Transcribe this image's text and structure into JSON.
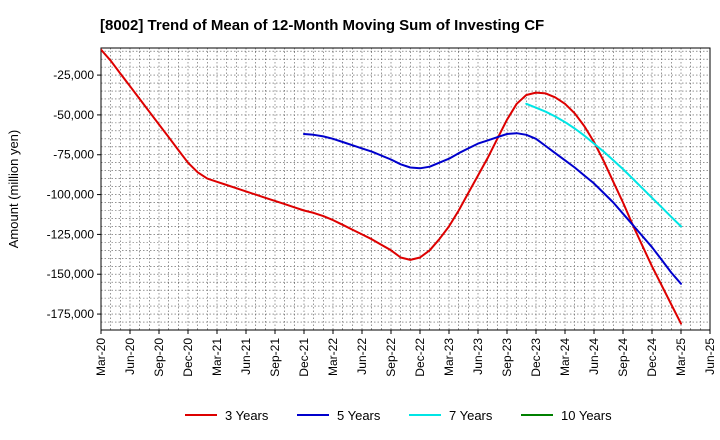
{
  "chart_data": {
    "type": "line",
    "title": "[8002]  Trend of Mean of 12-Month Moving Sum of Investing CF",
    "xlabel": "",
    "ylabel": "Amount (million yen)",
    "x_ticks": [
      "Mar-20",
      "Jun-20",
      "Sep-20",
      "Dec-20",
      "Mar-21",
      "Jun-21",
      "Sep-21",
      "Dec-21",
      "Mar-22",
      "Jun-22",
      "Sep-22",
      "Dec-22",
      "Mar-23",
      "Jun-23",
      "Sep-23",
      "Dec-23",
      "Mar-24",
      "Jun-24",
      "Sep-24",
      "Dec-24",
      "Mar-25",
      "Jun-25"
    ],
    "y_ticks": [
      -25000,
      -50000,
      -75000,
      -100000,
      -125000,
      -150000,
      -175000
    ],
    "y_tick_labels": [
      "-25,000",
      "-50,000",
      "-75,000",
      "-100,000",
      "-125,000",
      "-150,000",
      "-175,000"
    ],
    "ylim": [
      -185000,
      -8000
    ],
    "grid": true,
    "legend_position": "bottom",
    "series": [
      {
        "name": "3 Years",
        "color": "#dd0000",
        "x": [
          "Mar-20",
          "Apr-20",
          "May-20",
          "Jun-20",
          "Jul-20",
          "Aug-20",
          "Sep-20",
          "Oct-20",
          "Nov-20",
          "Dec-20",
          "Jan-21",
          "Feb-21",
          "Mar-21",
          "Apr-21",
          "May-21",
          "Jun-21",
          "Jul-21",
          "Aug-21",
          "Sep-21",
          "Oct-21",
          "Nov-21",
          "Dec-21",
          "Jan-22",
          "Feb-22",
          "Mar-22",
          "Apr-22",
          "May-22",
          "Jun-22",
          "Jul-22",
          "Aug-22",
          "Sep-22",
          "Oct-22",
          "Nov-22",
          "Dec-22",
          "Jan-23",
          "Feb-23",
          "Mar-23",
          "Apr-23",
          "May-23",
          "Jun-23",
          "Jul-23",
          "Aug-23",
          "Sep-23",
          "Oct-23",
          "Nov-23",
          "Dec-23",
          "Jan-24",
          "Feb-24",
          "Mar-24",
          "Apr-24",
          "May-24",
          "Jun-24",
          "Jul-24",
          "Aug-24",
          "Sep-24",
          "Oct-24",
          "Nov-24",
          "Dec-24",
          "Jan-25",
          "Feb-25",
          "Mar-25"
        ],
        "values": [
          -9000,
          -16000,
          -24000,
          -32000,
          -40000,
          -48000,
          -56000,
          -64000,
          -72000,
          -80000,
          -86000,
          -90000,
          -92000,
          -94000,
          -96000,
          -98000,
          -100000,
          -102000,
          -104000,
          -106000,
          -108000,
          -110000,
          -111500,
          -113500,
          -116000,
          -119000,
          -122000,
          -125000,
          -128000,
          -131500,
          -135000,
          -139500,
          -141000,
          -139500,
          -135000,
          -128000,
          -120000,
          -110000,
          -99000,
          -88000,
          -77000,
          -65000,
          -53000,
          -43000,
          -37500,
          -36000,
          -36500,
          -39000,
          -43000,
          -49000,
          -57000,
          -67000,
          -79000,
          -92000,
          -105000,
          -119000,
          -132000,
          -145000,
          -157000,
          -169000,
          -181000
        ]
      },
      {
        "name": "5 Years",
        "color": "#0000cc",
        "x": [
          "Dec-21",
          "Jan-22",
          "Feb-22",
          "Mar-22",
          "Apr-22",
          "May-22",
          "Jun-22",
          "Jul-22",
          "Aug-22",
          "Sep-22",
          "Oct-22",
          "Nov-22",
          "Dec-22",
          "Jan-23",
          "Feb-23",
          "Mar-23",
          "Apr-23",
          "May-23",
          "Jun-23",
          "Jul-23",
          "Aug-23",
          "Sep-23",
          "Oct-23",
          "Nov-23",
          "Dec-23",
          "Jan-24",
          "Feb-24",
          "Mar-24",
          "Apr-24",
          "May-24",
          "Jun-24",
          "Jul-24",
          "Aug-24",
          "Sep-24",
          "Oct-24",
          "Nov-24",
          "Dec-24",
          "Jan-25",
          "Feb-25",
          "Mar-25"
        ],
        "values": [
          -62000,
          -62500,
          -63500,
          -65000,
          -67000,
          -69000,
          -71000,
          -73000,
          -75500,
          -78000,
          -81000,
          -83000,
          -83500,
          -82500,
          -80000,
          -77500,
          -74000,
          -71000,
          -68000,
          -66000,
          -64000,
          -62000,
          -61500,
          -62500,
          -65000,
          -69500,
          -74000,
          -78500,
          -83000,
          -88000,
          -93000,
          -99000,
          -105000,
          -112000,
          -119000,
          -126000,
          -133000,
          -141000,
          -149000,
          -156000
        ]
      },
      {
        "name": "7 Years",
        "color": "#00e5e5",
        "x": [
          "Nov-23",
          "Dec-23",
          "Jan-24",
          "Feb-24",
          "Mar-24",
          "Apr-24",
          "May-24",
          "Jun-24",
          "Jul-24",
          "Aug-24",
          "Sep-24",
          "Oct-24",
          "Nov-24",
          "Dec-24",
          "Jan-25",
          "Feb-25",
          "Mar-25"
        ],
        "values": [
          -43000,
          -45500,
          -48000,
          -51000,
          -54500,
          -58500,
          -63000,
          -68000,
          -73000,
          -78500,
          -84000,
          -90000,
          -96000,
          -102000,
          -108000,
          -114000,
          -120000
        ]
      },
      {
        "name": "10 Years",
        "color": "#008000",
        "x": [],
        "values": []
      }
    ]
  }
}
